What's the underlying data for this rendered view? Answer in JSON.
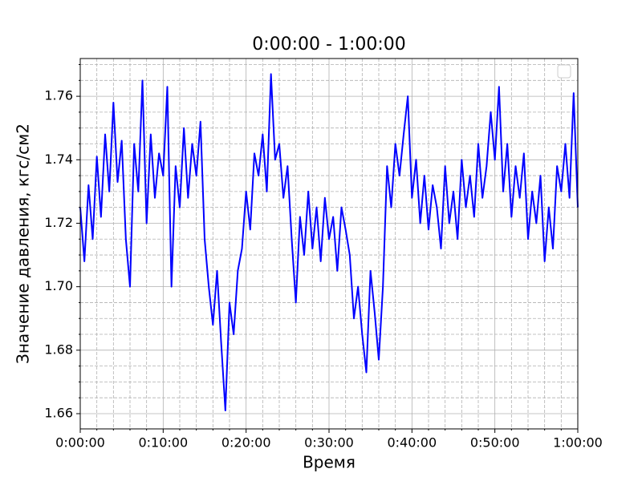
{
  "chart_data": {
    "type": "line",
    "title": "0:00:00 - 1:00:00",
    "x_label": "Время",
    "y_label": "Значение давления, кгс/см2",
    "x": [
      0,
      30,
      60,
      90,
      120,
      150,
      180,
      210,
      240,
      270,
      300,
      330,
      360,
      390,
      420,
      450,
      480,
      510,
      540,
      570,
      600,
      630,
      660,
      690,
      720,
      750,
      780,
      810,
      840,
      870,
      900,
      930,
      960,
      990,
      1020,
      1050,
      1080,
      1110,
      1140,
      1170,
      1200,
      1230,
      1260,
      1290,
      1320,
      1350,
      1380,
      1410,
      1440,
      1470,
      1500,
      1530,
      1560,
      1590,
      1620,
      1650,
      1680,
      1710,
      1740,
      1770,
      1800,
      1830,
      1860,
      1890,
      1920,
      1950,
      1980,
      2010,
      2040,
      2070,
      2100,
      2130,
      2160,
      2190,
      2220,
      2250,
      2280,
      2310,
      2340,
      2370,
      2400,
      2430,
      2460,
      2490,
      2520,
      2550,
      2580,
      2610,
      2640,
      2670,
      2700,
      2730,
      2760,
      2790,
      2820,
      2850,
      2880,
      2910,
      2940,
      2970,
      3000,
      3030,
      3060,
      3090,
      3120,
      3150,
      3180,
      3210,
      3240,
      3270,
      3300,
      3330,
      3360,
      3390,
      3420,
      3450,
      3480,
      3510,
      3540,
      3570,
      3600
    ],
    "series": [
      {
        "color": "#0000ff",
        "values": [
          1.725,
          1.708,
          1.732,
          1.715,
          1.741,
          1.722,
          1.748,
          1.73,
          1.758,
          1.733,
          1.746,
          1.715,
          1.7,
          1.745,
          1.73,
          1.765,
          1.72,
          1.748,
          1.728,
          1.742,
          1.735,
          1.763,
          1.7,
          1.738,
          1.725,
          1.75,
          1.728,
          1.745,
          1.735,
          1.752,
          1.715,
          1.7,
          1.688,
          1.705,
          1.682,
          1.661,
          1.695,
          1.685,
          1.705,
          1.712,
          1.73,
          1.718,
          1.742,
          1.735,
          1.748,
          1.73,
          1.767,
          1.74,
          1.745,
          1.728,
          1.738,
          1.715,
          1.695,
          1.722,
          1.71,
          1.73,
          1.712,
          1.725,
          1.708,
          1.728,
          1.715,
          1.722,
          1.705,
          1.725,
          1.718,
          1.71,
          1.69,
          1.7,
          1.685,
          1.673,
          1.705,
          1.692,
          1.677,
          1.7,
          1.738,
          1.725,
          1.745,
          1.735,
          1.748,
          1.76,
          1.728,
          1.74,
          1.72,
          1.735,
          1.718,
          1.732,
          1.725,
          1.712,
          1.738,
          1.72,
          1.73,
          1.715,
          1.74,
          1.725,
          1.735,
          1.722,
          1.745,
          1.728,
          1.738,
          1.755,
          1.74,
          1.763,
          1.73,
          1.745,
          1.722,
          1.738,
          1.728,
          1.742,
          1.715,
          1.73,
          1.72,
          1.735,
          1.708,
          1.725,
          1.712,
          1.738,
          1.73,
          1.745,
          1.728,
          1.761,
          1.725
        ]
      }
    ],
    "xlim": [
      0,
      3600
    ],
    "xticks": [
      {
        "value": 0,
        "label": "0:00:00"
      },
      {
        "value": 600,
        "label": "0:10:00"
      },
      {
        "value": 1200,
        "label": "0:20:00"
      },
      {
        "value": 1800,
        "label": "0:30:00"
      },
      {
        "value": 2400,
        "label": "0:40:00"
      },
      {
        "value": 3000,
        "label": "0:50:00"
      },
      {
        "value": 3600,
        "label": "1:00:00"
      }
    ],
    "xminorticks": [
      120,
      240,
      360,
      480,
      720,
      840,
      960,
      1080,
      1320,
      1440,
      1560,
      1680,
      1920,
      2040,
      2160,
      2280,
      2520,
      2640,
      2760,
      2880,
      3120,
      3240,
      3360,
      3480
    ],
    "ylim": [
      1.6552,
      1.7719
    ],
    "yticks": [
      {
        "value": 1.66,
        "label": "1.66"
      },
      {
        "value": 1.68,
        "label": "1.68"
      },
      {
        "value": 1.7,
        "label": "1.70"
      },
      {
        "value": 1.72,
        "label": "1.72"
      },
      {
        "value": 1.74,
        "label": "1.74"
      },
      {
        "value": 1.76,
        "label": "1.76"
      }
    ],
    "yminorticks": [
      1.665,
      1.67,
      1.675,
      1.685,
      1.69,
      1.695,
      1.705,
      1.71,
      1.715,
      1.725,
      1.73,
      1.735,
      1.745,
      1.75,
      1.755,
      1.765,
      1.77
    ],
    "grid": true
  }
}
